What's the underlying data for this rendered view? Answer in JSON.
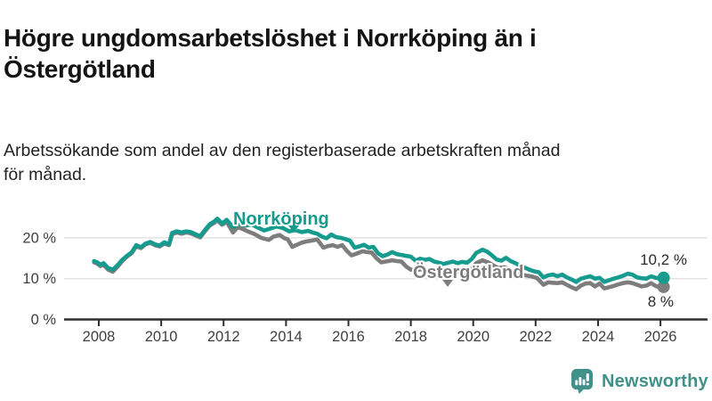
{
  "title_lines": [
    "Högre ungdomsarbetslöshet i Norrköping än i",
    "Östergötland"
  ],
  "subtitle_lines": [
    "Arbetssökande som andel av den registerbaserade arbetskraften månad",
    "för månad."
  ],
  "footer": {
    "brand": "Newsworthy"
  },
  "colors": {
    "norrkoping": "#169b8f",
    "ostergotland": "#7d7d7d",
    "grid": "#e3e3e3",
    "axis": "#2f2f2f",
    "tick_text": "#3f3f3f",
    "value_label": "#2b2b2b",
    "logo": "#3f9189"
  },
  "chart_data": {
    "type": "line",
    "title": "Högre ungdomsarbetslöshet i Norrköping än i Östergötland",
    "xlabel": "",
    "ylabel": "Arbetssökande som andel av den registerbaserade arbetskraften, %",
    "unit": "%",
    "grid": "horizontal",
    "legend_position": "inline-labels",
    "xlim": [
      2007.8,
      2026.5
    ],
    "ylim": [
      0,
      26
    ],
    "x_ticks": [
      2008,
      2010,
      2012,
      2014,
      2016,
      2018,
      2020,
      2022,
      2024,
      2026
    ],
    "y_ticks": [
      {
        "value": 0,
        "label": "0 %"
      },
      {
        "value": 10,
        "label": "10 %"
      },
      {
        "value": 20,
        "label": "20 %"
      }
    ],
    "grid_color": "#e3e3e3",
    "axis_color": "#2f2f2f",
    "tick_text_color": "#3f3f3f",
    "value_label_color": "#2b2b2b",
    "series": [
      {
        "name": "Östergötland",
        "color": "#7d7d7d",
        "end_label": "8 %",
        "end_value": 8.0,
        "points": [
          [
            2007.85,
            14.0
          ],
          [
            2007.95,
            13.7
          ],
          [
            2008.05,
            13.1
          ],
          [
            2008.15,
            13.4
          ],
          [
            2008.3,
            12.2
          ],
          [
            2008.45,
            11.7
          ],
          [
            2008.6,
            12.9
          ],
          [
            2008.75,
            14.3
          ],
          [
            2008.9,
            15.4
          ],
          [
            2009.05,
            16.2
          ],
          [
            2009.2,
            18.0
          ],
          [
            2009.35,
            17.5
          ],
          [
            2009.5,
            18.4
          ],
          [
            2009.65,
            18.8
          ],
          [
            2009.8,
            18.2
          ],
          [
            2009.95,
            17.9
          ],
          [
            2010.1,
            18.6
          ],
          [
            2010.25,
            18.2
          ],
          [
            2010.35,
            20.9
          ],
          [
            2010.5,
            21.3
          ],
          [
            2010.65,
            21.0
          ],
          [
            2010.8,
            21.3
          ],
          [
            2010.95,
            21.1
          ],
          [
            2011.1,
            20.6
          ],
          [
            2011.25,
            20.1
          ],
          [
            2011.4,
            21.6
          ],
          [
            2011.55,
            23.0
          ],
          [
            2011.7,
            23.7
          ],
          [
            2011.8,
            24.3
          ],
          [
            2011.95,
            23.2
          ],
          [
            2012.1,
            23.9
          ],
          [
            2012.3,
            21.3
          ],
          [
            2012.45,
            22.6
          ],
          [
            2012.6,
            22.2
          ],
          [
            2012.8,
            21.5
          ],
          [
            2013.0,
            20.9
          ],
          [
            2013.2,
            20.0
          ],
          [
            2013.45,
            19.5
          ],
          [
            2013.6,
            20.3
          ],
          [
            2013.8,
            20.7
          ],
          [
            2013.95,
            19.9
          ],
          [
            2014.05,
            19.7
          ],
          [
            2014.2,
            17.8
          ],
          [
            2014.35,
            18.3
          ],
          [
            2014.5,
            18.8
          ],
          [
            2014.65,
            19.1
          ],
          [
            2014.8,
            19.3
          ],
          [
            2015.0,
            19.6
          ],
          [
            2015.2,
            17.6
          ],
          [
            2015.35,
            18.0
          ],
          [
            2015.5,
            18.2
          ],
          [
            2015.65,
            17.8
          ],
          [
            2015.8,
            18.2
          ],
          [
            2015.95,
            16.8
          ],
          [
            2016.1,
            15.7
          ],
          [
            2016.25,
            16.1
          ],
          [
            2016.45,
            16.7
          ],
          [
            2016.6,
            16.5
          ],
          [
            2016.75,
            16.4
          ],
          [
            2016.9,
            15.0
          ],
          [
            2017.05,
            14.0
          ],
          [
            2017.2,
            14.2
          ],
          [
            2017.4,
            14.5
          ],
          [
            2017.55,
            14.3
          ],
          [
            2017.7,
            14.2
          ],
          [
            2017.85,
            13.0
          ],
          [
            2018.0,
            12.2
          ],
          [
            2018.15,
            12.0
          ],
          [
            2018.3,
            12.3
          ],
          [
            2018.45,
            12.1
          ],
          [
            2018.6,
            12.2
          ],
          [
            2018.8,
            11.8
          ],
          [
            2019.0,
            11.4
          ],
          [
            2019.2,
            11.6
          ],
          [
            2019.4,
            11.8
          ],
          [
            2019.6,
            11.5
          ],
          [
            2019.8,
            11.7
          ],
          [
            2019.95,
            12.5
          ],
          [
            2020.1,
            13.8
          ],
          [
            2020.3,
            14.5
          ],
          [
            2020.5,
            13.9
          ],
          [
            2020.65,
            13.2
          ],
          [
            2020.8,
            12.6
          ],
          [
            2021.0,
            12.8
          ],
          [
            2021.15,
            12.2
          ],
          [
            2021.3,
            11.7
          ],
          [
            2021.45,
            11.2
          ],
          [
            2021.6,
            10.9
          ],
          [
            2021.75,
            10.7
          ],
          [
            2021.9,
            10.5
          ],
          [
            2022.05,
            10.1
          ],
          [
            2022.25,
            8.5
          ],
          [
            2022.4,
            9.1
          ],
          [
            2022.55,
            9.0
          ],
          [
            2022.7,
            8.9
          ],
          [
            2022.85,
            9.1
          ],
          [
            2023.0,
            8.5
          ],
          [
            2023.15,
            7.9
          ],
          [
            2023.3,
            7.4
          ],
          [
            2023.45,
            8.3
          ],
          [
            2023.6,
            8.8
          ],
          [
            2023.75,
            8.9
          ],
          [
            2023.9,
            8.1
          ],
          [
            2024.05,
            8.8
          ],
          [
            2024.2,
            7.6
          ],
          [
            2024.35,
            7.9
          ],
          [
            2024.5,
            8.2
          ],
          [
            2024.65,
            8.6
          ],
          [
            2024.8,
            8.9
          ],
          [
            2024.95,
            9.1
          ],
          [
            2025.1,
            8.9
          ],
          [
            2025.25,
            8.5
          ],
          [
            2025.4,
            8.1
          ],
          [
            2025.55,
            8.3
          ],
          [
            2025.7,
            8.9
          ],
          [
            2025.85,
            8.2
          ],
          [
            2026.0,
            7.8
          ],
          [
            2026.1,
            8.0
          ]
        ]
      },
      {
        "name": "Norrköping",
        "color": "#169b8f",
        "end_label": "10,2 %",
        "end_value": 10.2,
        "points": [
          [
            2007.85,
            14.3
          ],
          [
            2007.95,
            14.0
          ],
          [
            2008.05,
            13.4
          ],
          [
            2008.15,
            13.8
          ],
          [
            2008.3,
            12.6
          ],
          [
            2008.45,
            12.2
          ],
          [
            2008.6,
            13.3
          ],
          [
            2008.75,
            14.6
          ],
          [
            2008.9,
            15.6
          ],
          [
            2009.05,
            16.4
          ],
          [
            2009.2,
            18.2
          ],
          [
            2009.35,
            17.7
          ],
          [
            2009.5,
            18.6
          ],
          [
            2009.65,
            19.0
          ],
          [
            2009.8,
            18.4
          ],
          [
            2009.95,
            18.1
          ],
          [
            2010.1,
            18.9
          ],
          [
            2010.25,
            18.4
          ],
          [
            2010.35,
            21.2
          ],
          [
            2010.5,
            21.6
          ],
          [
            2010.65,
            21.3
          ],
          [
            2010.8,
            21.6
          ],
          [
            2010.95,
            21.4
          ],
          [
            2011.1,
            20.9
          ],
          [
            2011.25,
            20.4
          ],
          [
            2011.4,
            21.9
          ],
          [
            2011.55,
            23.3
          ],
          [
            2011.7,
            24.0
          ],
          [
            2011.8,
            24.7
          ],
          [
            2011.95,
            23.5
          ],
          [
            2012.1,
            24.4
          ],
          [
            2012.3,
            22.6
          ],
          [
            2012.5,
            23.5
          ],
          [
            2012.7,
            23.0
          ],
          [
            2012.9,
            23.3
          ],
          [
            2013.1,
            22.5
          ],
          [
            2013.3,
            21.8
          ],
          [
            2013.5,
            22.3
          ],
          [
            2013.7,
            22.8
          ],
          [
            2013.9,
            22.4
          ],
          [
            2014.1,
            21.6
          ],
          [
            2014.3,
            21.9
          ],
          [
            2014.5,
            21.4
          ],
          [
            2014.7,
            21.7
          ],
          [
            2014.9,
            21.2
          ],
          [
            2015.0,
            21.0
          ],
          [
            2015.15,
            20.3
          ],
          [
            2015.3,
            19.9
          ],
          [
            2015.45,
            20.8
          ],
          [
            2015.6,
            20.2
          ],
          [
            2015.75,
            20.0
          ],
          [
            2015.9,
            19.7
          ],
          [
            2016.05,
            19.3
          ],
          [
            2016.2,
            17.6
          ],
          [
            2016.35,
            17.9
          ],
          [
            2016.5,
            18.3
          ],
          [
            2016.65,
            17.6
          ],
          [
            2016.8,
            17.8
          ],
          [
            2016.95,
            16.2
          ],
          [
            2017.1,
            15.5
          ],
          [
            2017.25,
            15.9
          ],
          [
            2017.4,
            16.5
          ],
          [
            2017.55,
            16.0
          ],
          [
            2017.7,
            15.8
          ],
          [
            2017.85,
            15.6
          ],
          [
            2018.0,
            15.4
          ],
          [
            2018.15,
            14.4
          ],
          [
            2018.3,
            14.9
          ],
          [
            2018.45,
            14.6
          ],
          [
            2018.6,
            14.8
          ],
          [
            2018.75,
            14.2
          ],
          [
            2018.9,
            13.9
          ],
          [
            2019.05,
            13.6
          ],
          [
            2019.2,
            13.9
          ],
          [
            2019.35,
            14.2
          ],
          [
            2019.5,
            13.8
          ],
          [
            2019.65,
            14.1
          ],
          [
            2019.8,
            13.9
          ],
          [
            2019.95,
            14.8
          ],
          [
            2020.1,
            16.3
          ],
          [
            2020.3,
            17.1
          ],
          [
            2020.45,
            16.6
          ],
          [
            2020.6,
            15.7
          ],
          [
            2020.75,
            14.7
          ],
          [
            2020.9,
            14.4
          ],
          [
            2021.05,
            15.1
          ],
          [
            2021.2,
            14.3
          ],
          [
            2021.35,
            13.8
          ],
          [
            2021.5,
            13.2
          ],
          [
            2021.65,
            12.7
          ],
          [
            2021.8,
            12.2
          ],
          [
            2021.95,
            11.8
          ],
          [
            2022.1,
            11.6
          ],
          [
            2022.25,
            10.3
          ],
          [
            2022.4,
            10.8
          ],
          [
            2022.55,
            11.0
          ],
          [
            2022.7,
            10.6
          ],
          [
            2022.85,
            11.0
          ],
          [
            2023.0,
            10.3
          ],
          [
            2023.15,
            9.8
          ],
          [
            2023.3,
            9.2
          ],
          [
            2023.45,
            10.0
          ],
          [
            2023.6,
            10.3
          ],
          [
            2023.75,
            10.6
          ],
          [
            2023.9,
            10.0
          ],
          [
            2024.05,
            10.2
          ],
          [
            2024.2,
            9.2
          ],
          [
            2024.35,
            9.6
          ],
          [
            2024.5,
            10.0
          ],
          [
            2024.65,
            10.3
          ],
          [
            2024.8,
            10.7
          ],
          [
            2024.95,
            11.2
          ],
          [
            2025.1,
            11.0
          ],
          [
            2025.25,
            10.3
          ],
          [
            2025.4,
            10.1
          ],
          [
            2025.55,
            10.0
          ],
          [
            2025.7,
            10.6
          ],
          [
            2025.85,
            10.2
          ],
          [
            2026.0,
            10.0
          ],
          [
            2026.1,
            10.2
          ]
        ]
      }
    ]
  }
}
